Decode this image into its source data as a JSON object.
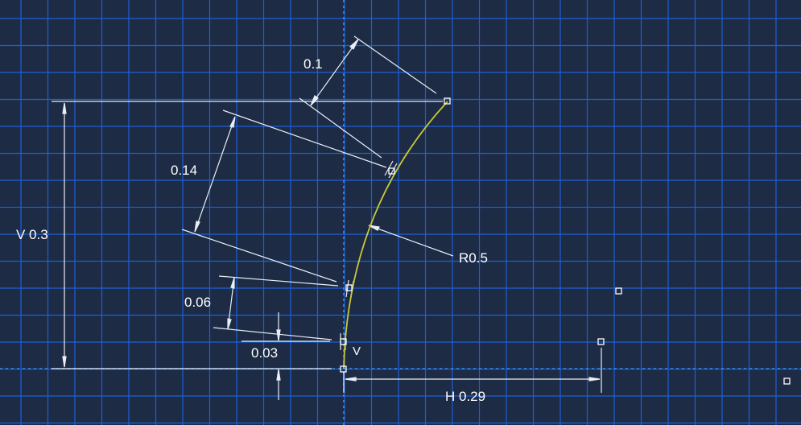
{
  "colors": {
    "background": "#1d2b44",
    "grid": "#1e5fd8",
    "axis": "#3d8fe8",
    "dimension": "#e8eef5",
    "arc": "#c9c93a",
    "vertex": "#ffffff"
  },
  "dimensions": {
    "offset_top": "0.1",
    "segment_upper": "0.14",
    "vertical": "V 0.3",
    "radius": "R0.5",
    "segment_middle": "0.06",
    "segment_lower": "0.03",
    "horizontal": "H 0.29"
  },
  "constraints": {
    "vertical_marker": "V"
  }
}
